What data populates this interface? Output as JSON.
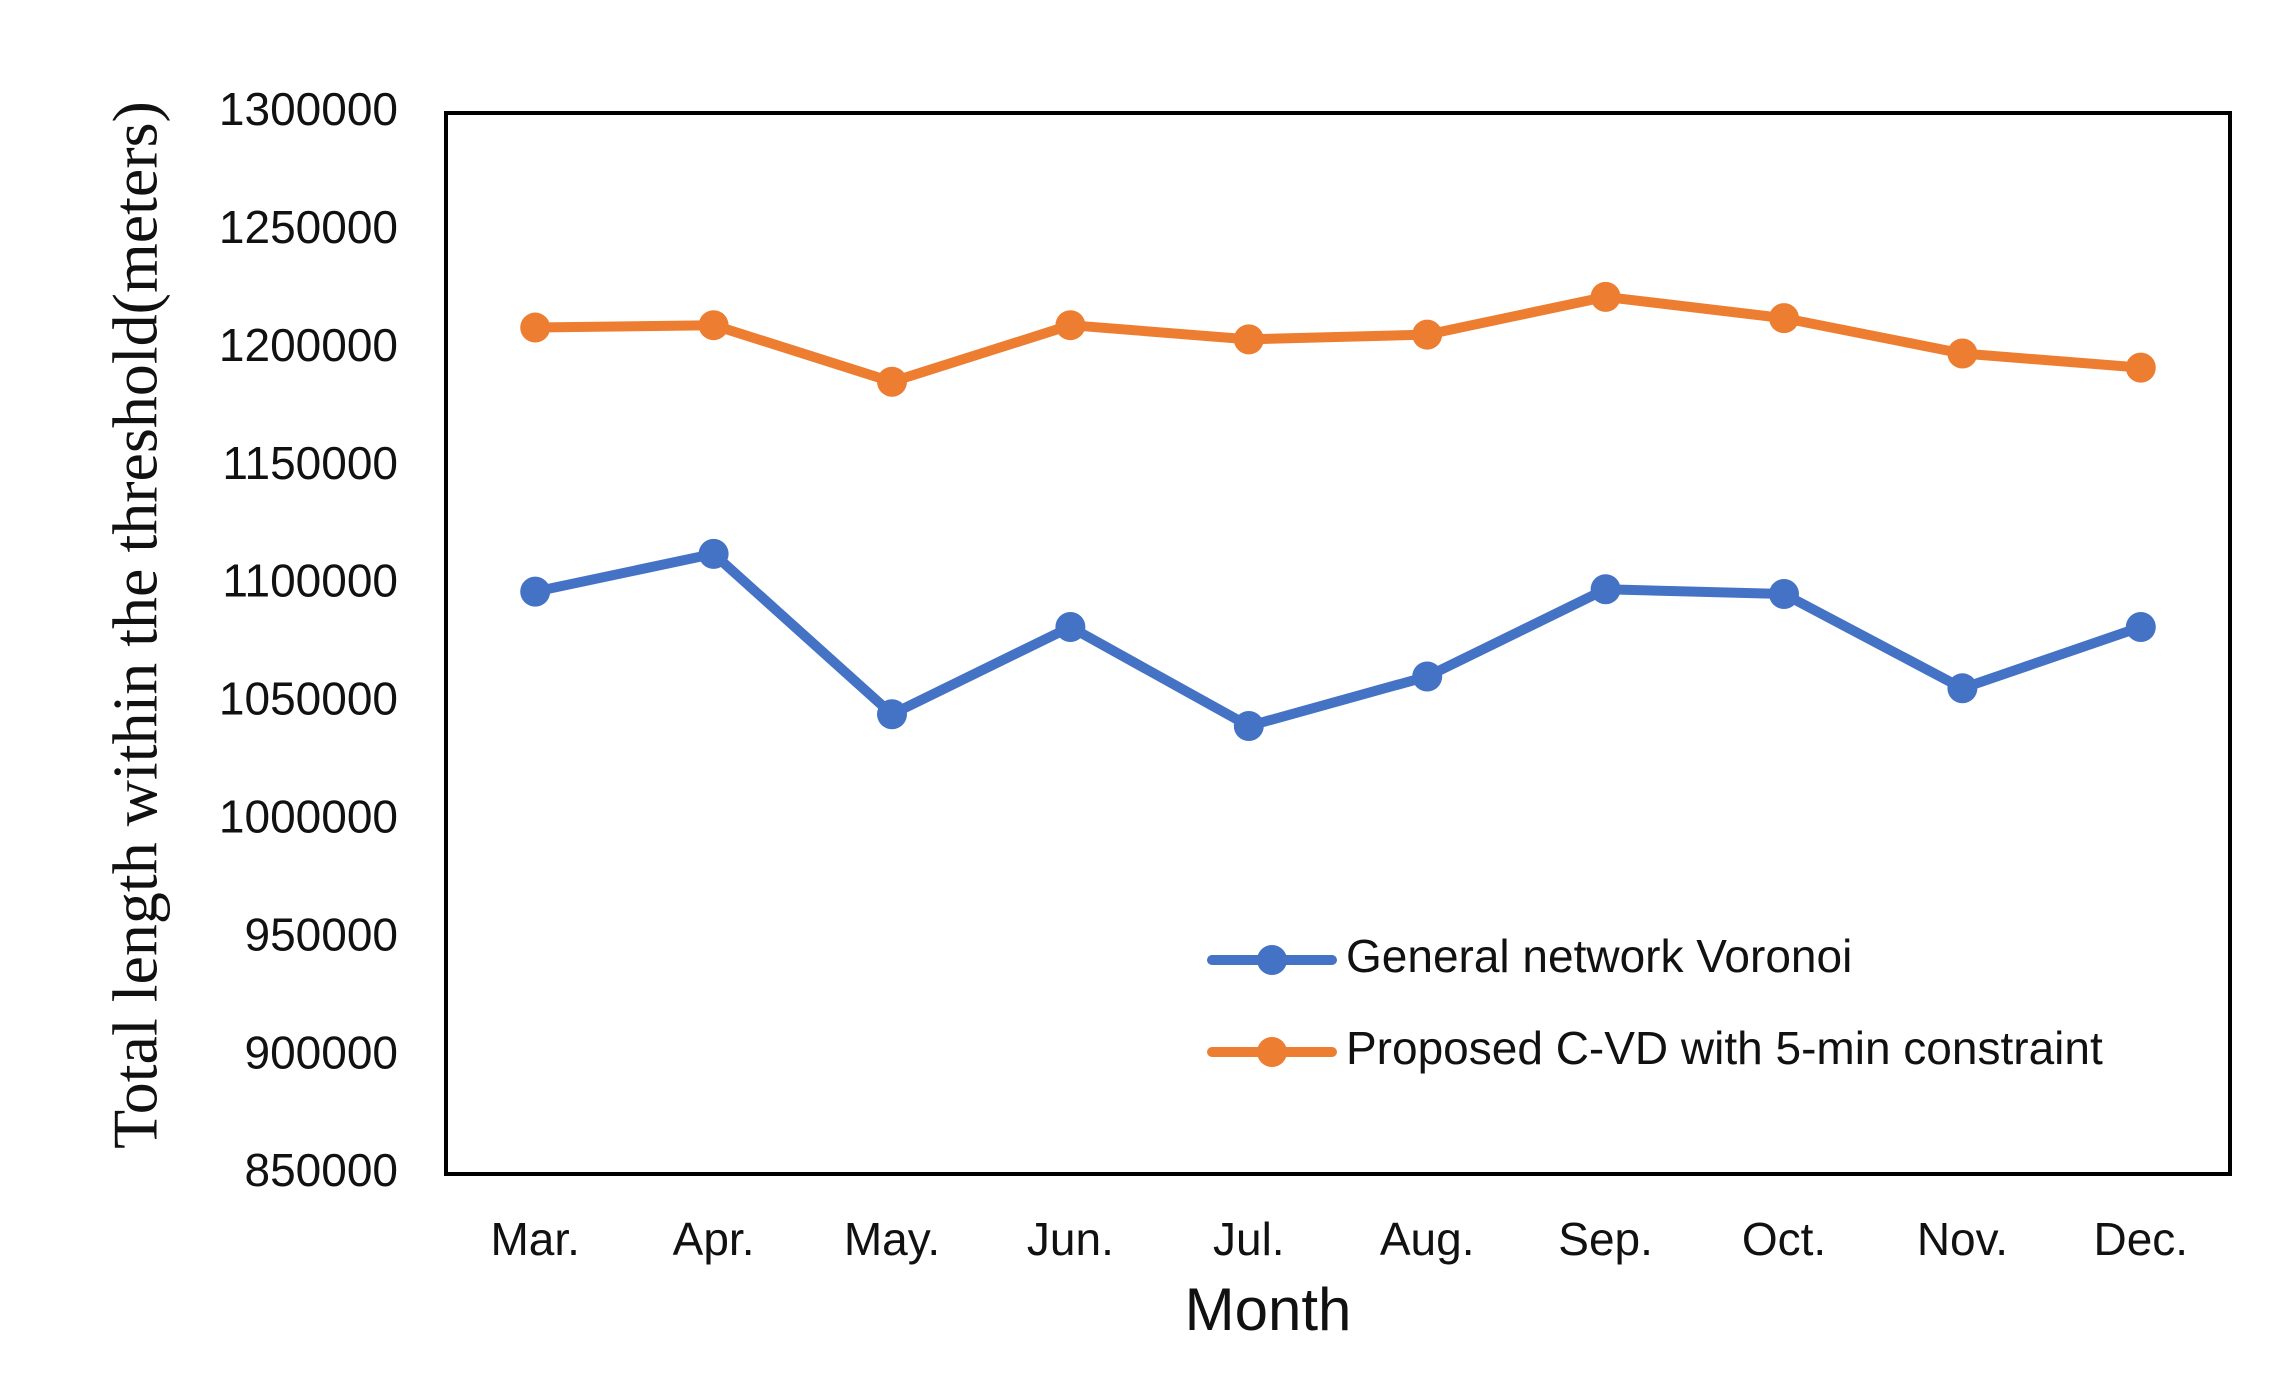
{
  "chart_data": {
    "type": "line",
    "title": "",
    "xlabel": "Month",
    "ylabel": "Total length within the threshold(meters)",
    "ylim": [
      850000,
      1300000
    ],
    "ytick_step": 50000,
    "yticks": [
      "1300000",
      "1250000",
      "1200000",
      "1150000",
      "1100000",
      "1050000",
      "1000000",
      "950000",
      "900000",
      "850000"
    ],
    "categories": [
      "Mar.",
      "Apr.",
      "May.",
      "Jun.",
      "Jul.",
      "Aug.",
      "Sep.",
      "Oct.",
      "Nov.",
      "Dec."
    ],
    "grid": false,
    "legend_position": "bottom-right",
    "series": [
      {
        "name": "General network Voronoi",
        "color": "#4472C4",
        "values": [
          1097000,
          1113000,
          1045000,
          1082000,
          1040000,
          1061000,
          1098000,
          1096000,
          1056000,
          1082000
        ]
      },
      {
        "name": "Proposed C-VD with 5-min constraint",
        "color": "#ED7D31",
        "values": [
          1209000,
          1210000,
          1186000,
          1210000,
          1204000,
          1206000,
          1222000,
          1213000,
          1198000,
          1192000
        ]
      }
    ]
  }
}
